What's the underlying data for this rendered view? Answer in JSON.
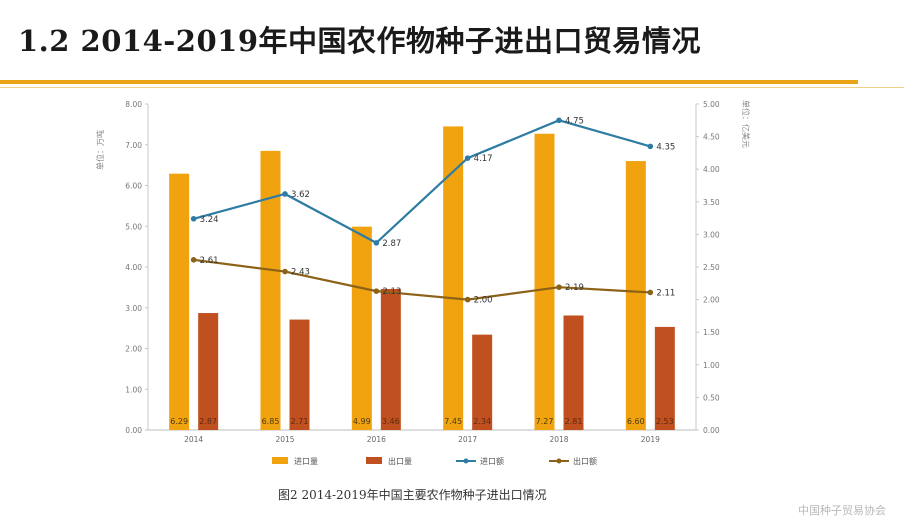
{
  "page": {
    "title": "1.2 2014-2019年中国农作物种子进出口贸易情况",
    "caption": "图2  2014-2019年中国主要农作物种子进出口情况",
    "watermark": "中国种子贸易协会"
  },
  "colors": {
    "accent": "#e8a317",
    "import_volume": "#f0a30f",
    "export_volume": "#c0501f",
    "import_value": "#2e7ca3",
    "export_value": "#8c6216"
  },
  "chart_data": {
    "type": "bar",
    "categories": [
      "2014",
      "2015",
      "2016",
      "2017",
      "2018",
      "2019"
    ],
    "left_axis": {
      "label": "单位：万吨",
      "ylim": [
        0,
        8
      ],
      "ticks": [
        "0.00",
        "1.00",
        "2.00",
        "3.00",
        "4.00",
        "5.00",
        "6.00",
        "7.00",
        "8.00"
      ]
    },
    "right_axis": {
      "label": "单位：亿美元",
      "ylim": [
        0,
        5
      ],
      "ticks": [
        "0.00",
        "0.50",
        "1.00",
        "1.50",
        "2.00",
        "2.50",
        "3.00",
        "3.50",
        "4.00",
        "4.50",
        "5.00"
      ]
    },
    "series": [
      {
        "name": "进口量",
        "type": "bar",
        "axis": "left",
        "values": [
          6.29,
          6.85,
          4.99,
          7.45,
          7.27,
          6.6
        ],
        "labels": [
          "6.29",
          "6.85",
          "4.99",
          "7.45",
          "7.27",
          "6.60"
        ]
      },
      {
        "name": "出口量",
        "type": "bar",
        "axis": "left",
        "values": [
          2.87,
          2.71,
          3.46,
          2.34,
          2.81,
          2.53
        ],
        "labels": [
          "2.87",
          "2.71",
          "3.46",
          "2.34",
          "2.81",
          "2.53"
        ]
      },
      {
        "name": "进口额",
        "type": "line",
        "axis": "right",
        "values": [
          3.24,
          3.62,
          2.87,
          4.17,
          4.75,
          4.35
        ],
        "labels": [
          "3.24",
          "3.62",
          "2.87",
          "4.17",
          "4.75",
          "4.35"
        ]
      },
      {
        "name": "出口额",
        "type": "line",
        "axis": "right",
        "values": [
          2.61,
          2.43,
          2.13,
          2.0,
          2.19,
          2.11
        ],
        "labels": [
          "2.61",
          "2.43",
          "2.13",
          "2.00",
          "2.19",
          "2.11"
        ]
      }
    ],
    "legend": "bottom-center"
  }
}
